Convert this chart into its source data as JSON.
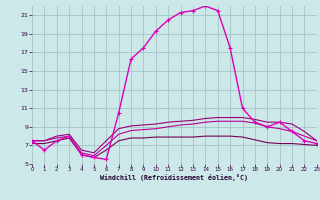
{
  "bg_color": "#cce8e8",
  "grid_color": "#9bbfbf",
  "xlabel": "Windchill (Refroidissement éolien,°C)",
  "xlim": [
    0,
    23
  ],
  "ylim": [
    5,
    22
  ],
  "xticks": [
    0,
    1,
    2,
    3,
    4,
    5,
    6,
    7,
    8,
    9,
    10,
    11,
    12,
    13,
    14,
    15,
    16,
    17,
    18,
    19,
    20,
    21,
    22,
    23
  ],
  "yticks": [
    5,
    7,
    9,
    11,
    13,
    15,
    17,
    19,
    21
  ],
  "curve_x": [
    0,
    1,
    2,
    3,
    4,
    5,
    6,
    7,
    8,
    9,
    10,
    11,
    12,
    13,
    14,
    15,
    16,
    17,
    18,
    19,
    20,
    21,
    22,
    23
  ],
  "curve_y": [
    7.5,
    6.5,
    7.5,
    8.0,
    6.0,
    5.7,
    5.5,
    10.5,
    16.3,
    17.5,
    19.3,
    20.5,
    21.3,
    21.5,
    22.0,
    21.5,
    17.5,
    11.0,
    9.5,
    9.0,
    9.5,
    8.5,
    7.5,
    7.2
  ],
  "flat1_x": [
    0,
    1,
    2,
    3,
    4,
    5,
    6,
    7,
    8,
    9,
    10,
    11,
    12,
    13,
    14,
    15,
    16,
    17,
    18,
    19,
    20,
    21,
    22,
    23
  ],
  "flat1_y": [
    7.5,
    7.5,
    8.0,
    8.2,
    6.5,
    6.2,
    7.5,
    8.8,
    9.1,
    9.2,
    9.3,
    9.5,
    9.6,
    9.7,
    9.9,
    10.0,
    10.0,
    10.0,
    9.8,
    9.5,
    9.5,
    9.3,
    8.5,
    7.5
  ],
  "flat2_x": [
    0,
    1,
    2,
    3,
    4,
    5,
    6,
    7,
    8,
    9,
    10,
    11,
    12,
    13,
    14,
    15,
    16,
    17,
    18,
    19,
    20,
    21,
    22,
    23
  ],
  "flat2_y": [
    7.5,
    7.5,
    7.8,
    8.0,
    6.2,
    5.9,
    7.0,
    8.2,
    8.6,
    8.7,
    8.8,
    9.0,
    9.2,
    9.3,
    9.5,
    9.6,
    9.6,
    9.6,
    9.4,
    9.0,
    8.8,
    8.5,
    8.0,
    7.5
  ],
  "flat3_x": [
    0,
    1,
    2,
    3,
    4,
    5,
    6,
    7,
    8,
    9,
    10,
    11,
    12,
    13,
    14,
    15,
    16,
    17,
    18,
    19,
    20,
    21,
    22,
    23
  ],
  "flat3_y": [
    7.2,
    7.2,
    7.5,
    7.8,
    6.0,
    5.7,
    6.5,
    7.5,
    7.8,
    7.8,
    7.9,
    7.9,
    7.9,
    7.9,
    8.0,
    8.0,
    8.0,
    7.9,
    7.6,
    7.3,
    7.2,
    7.2,
    7.1,
    7.0
  ],
  "curve_color": "#dd00bb",
  "flat1_color": "#990077",
  "flat2_color": "#bb0099",
  "flat3_color": "#770055",
  "tick_color": "#330044",
  "label_color": "#220033"
}
